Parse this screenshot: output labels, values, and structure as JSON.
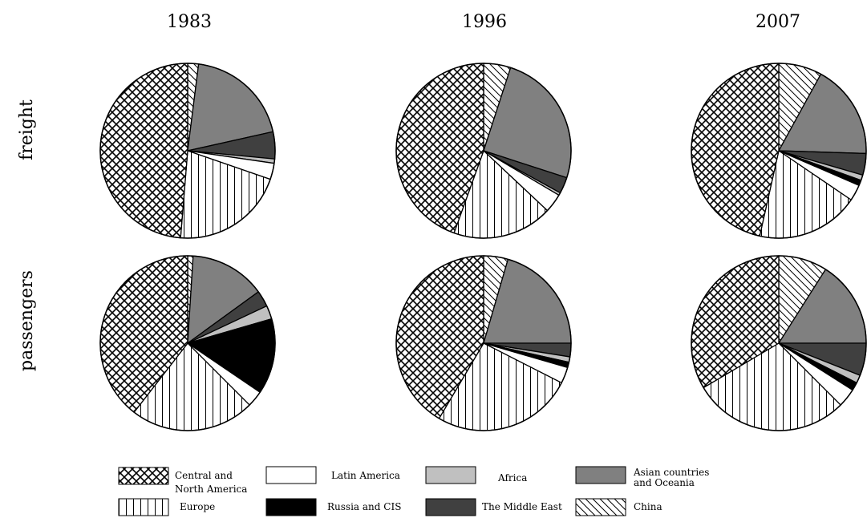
{
  "chart_data": {
    "type": "pie",
    "years": [
      "1983",
      "1996",
      "2007"
    ],
    "rows": [
      "freight",
      "passengers"
    ],
    "categories": [
      {
        "key": "cna",
        "label": "Central and North America",
        "fill": "crosshatch"
      },
      {
        "key": "china",
        "label": "China",
        "fill": "diagonal"
      },
      {
        "key": "asia",
        "label": "Asian countries and Oceania",
        "fill": "#808080"
      },
      {
        "key": "mideast",
        "label": "The Middle East",
        "fill": "#404040"
      },
      {
        "key": "africa",
        "label": "Africa",
        "fill": "#c0c0c0"
      },
      {
        "key": "russia",
        "label": "Russia and CIS",
        "fill": "#000000"
      },
      {
        "key": "latam",
        "label": "Latin America",
        "fill": "#ffffff"
      },
      {
        "key": "europe",
        "label": "Europe",
        "fill": "vertical"
      }
    ],
    "series": [
      {
        "row": "freight",
        "year": "1983",
        "values": {
          "china": 2.0,
          "asia": 19.5,
          "mideast": 5.0,
          "africa": 0.8,
          "russia": 0.0,
          "latam": 3.0,
          "europe": 21.0,
          "cna": 48.7
        }
      },
      {
        "row": "freight",
        "year": "1996",
        "values": {
          "china": 5.0,
          "asia": 25.0,
          "mideast": 3.0,
          "africa": 0.5,
          "russia": 0.0,
          "latam": 3.5,
          "europe": 18.5,
          "cna": 44.5
        }
      },
      {
        "row": "freight",
        "year": "2007",
        "values": {
          "china": 8.0,
          "asia": 17.5,
          "mideast": 4.0,
          "africa": 1.0,
          "russia": 1.0,
          "latam": 3.0,
          "europe": 19.0,
          "cna": 46.5
        }
      },
      {
        "row": "passengers",
        "year": "1983",
        "values": {
          "china": 1.0,
          "asia": 14.0,
          "mideast": 3.0,
          "africa": 2.5,
          "russia": 14.0,
          "latam": 3.0,
          "europe": 23.0,
          "cna": 39.5
        }
      },
      {
        "row": "passengers",
        "year": "1996",
        "values": {
          "china": 4.5,
          "asia": 20.5,
          "mideast": 2.5,
          "africa": 1.0,
          "russia": 1.0,
          "latam": 3.0,
          "europe": 26.0,
          "cna": 41.5
        }
      },
      {
        "row": "passengers",
        "year": "2007",
        "values": {
          "china": 9.0,
          "asia": 16.0,
          "mideast": 6.0,
          "africa": 1.5,
          "russia": 1.5,
          "latam": 3.5,
          "europe": 29.0,
          "cna": 33.5
        }
      }
    ]
  },
  "legend": {
    "items": [
      {
        "key": "cna",
        "lines": [
          "Central and",
          "North America"
        ]
      },
      {
        "key": "latam",
        "lines": [
          "Latin America"
        ]
      },
      {
        "key": "africa",
        "lines": [
          "Africa"
        ]
      },
      {
        "key": "asia",
        "lines": [
          "Asian countries",
          "and Oceania"
        ]
      },
      {
        "key": "europe",
        "lines": [
          "Europe"
        ]
      },
      {
        "key": "russia",
        "lines": [
          "Russia and CIS"
        ]
      },
      {
        "key": "mideast",
        "lines": [
          "The Middle East"
        ]
      },
      {
        "key": "china",
        "lines": [
          "China"
        ]
      }
    ]
  }
}
